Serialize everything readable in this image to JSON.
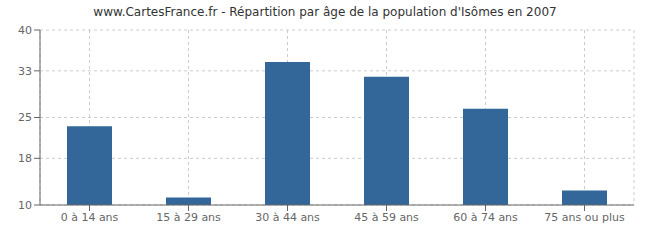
{
  "chart_data": {
    "type": "bar",
    "title": "www.CartesFrance.fr - Répartition par âge de la population d'Isômes en 2007",
    "categories": [
      "0 à 14 ans",
      "15 à 29 ans",
      "30 à 44 ans",
      "45 à 59 ans",
      "60 à 74 ans",
      "75 ans ou plus"
    ],
    "values": [
      23.5,
      11.3,
      34.5,
      32.0,
      26.5,
      12.5
    ],
    "color": "#336699",
    "ylim": [
      10,
      40
    ],
    "yticks": [
      10,
      18,
      25,
      33,
      40
    ],
    "grid": true
  }
}
